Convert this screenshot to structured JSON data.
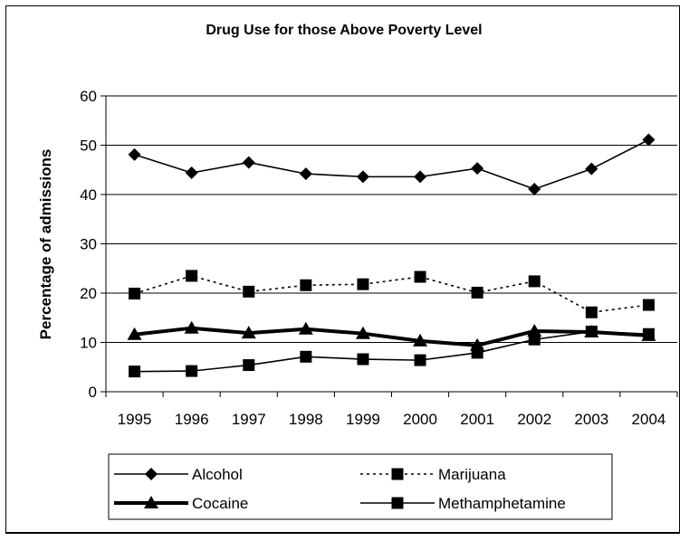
{
  "chart_data": {
    "type": "line",
    "title": "Drug Use for those Above Poverty Level",
    "xlabel": "",
    "ylabel": "Percentage of admissions",
    "categories": [
      "1995",
      "1996",
      "1997",
      "1998",
      "1999",
      "2000",
      "2001",
      "2002",
      "2003",
      "2004"
    ],
    "ylim": [
      0,
      60
    ],
    "yticks": [
      0,
      10,
      20,
      30,
      40,
      50,
      60
    ],
    "grid": "horizontal",
    "legend_position": "bottom",
    "series": [
      {
        "name": "Alcohol",
        "values": [
          48.1,
          44.4,
          46.5,
          44.2,
          43.6,
          43.6,
          45.3,
          41.1,
          45.2,
          51.1
        ],
        "marker": "diamond",
        "line": "solid",
        "weight": "thin",
        "color": "#000000"
      },
      {
        "name": "Marijuana",
        "values": [
          19.9,
          23.5,
          20.3,
          21.6,
          21.8,
          23.3,
          20.1,
          22.4,
          16.1,
          17.6
        ],
        "marker": "square",
        "line": "dotted",
        "weight": "thin",
        "color": "#000000"
      },
      {
        "name": "Cocaine",
        "values": [
          11.6,
          12.9,
          11.9,
          12.7,
          11.8,
          10.3,
          9.4,
          12.3,
          12.1,
          11.4
        ],
        "marker": "triangle",
        "line": "solid",
        "weight": "thick",
        "color": "#000000"
      },
      {
        "name": "Methamphetamine",
        "values": [
          4.1,
          4.2,
          5.4,
          7.1,
          6.6,
          6.4,
          7.9,
          10.6,
          12.2,
          11.7
        ],
        "marker": "square",
        "line": "solid",
        "weight": "thin",
        "color": "#000000"
      }
    ]
  }
}
